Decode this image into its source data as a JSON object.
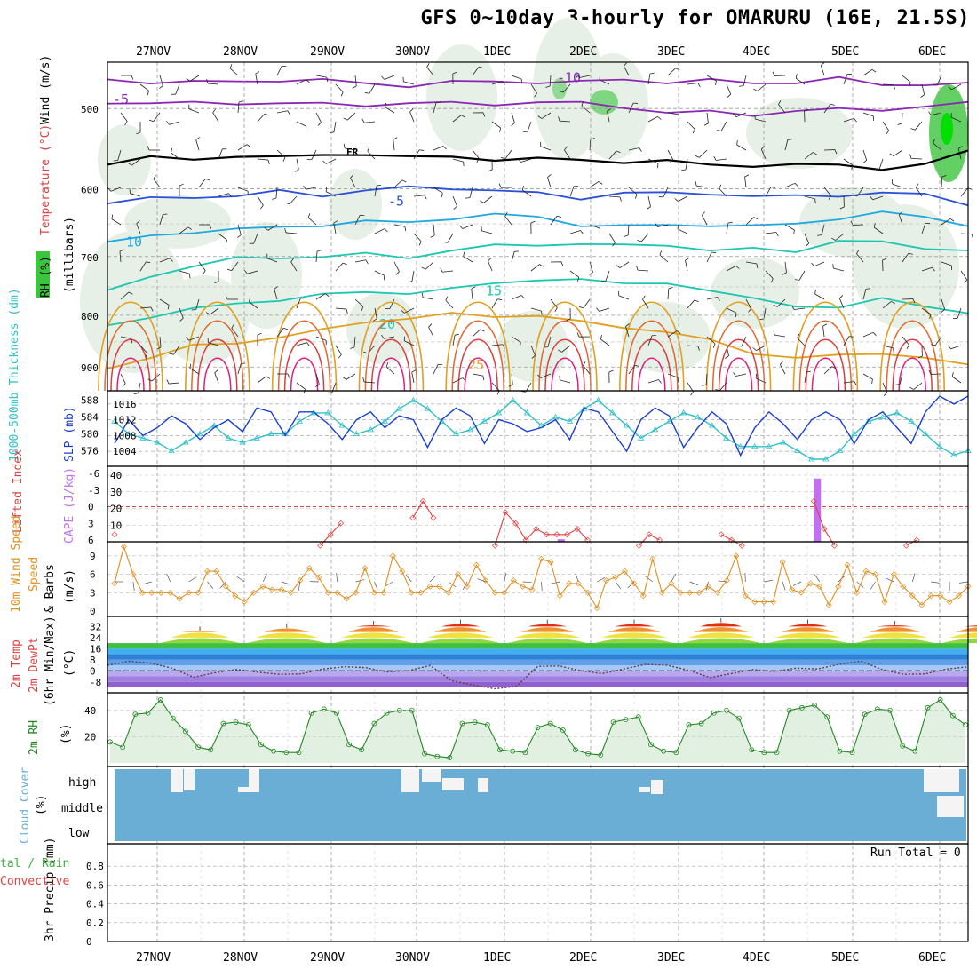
{
  "title": "GFS 0~10day 3-hourly for OMARURU (16E, 21.5S)",
  "dates": [
    "27NOV",
    "28NOV",
    "29NOV",
    "30NOV",
    "1DEC",
    "2DEC",
    "3DEC",
    "4DEC",
    "5DEC",
    "6DEC"
  ],
  "colors": {
    "rh_green": "#3cc43c",
    "temp_purple": "#8a28b4",
    "temp_blue": "#2a50d8",
    "temp_cyan": "#1fa8e0",
    "temp_teal": "#1bc7b0",
    "temp_orange": "#e0a020",
    "temp_red": "#e03050",
    "slp": "#1a3fd0",
    "thickness": "#30c0c8",
    "lifted": "#e04040",
    "cape": "#c070f0",
    "wind": "#e09020",
    "rh2m": "#228822",
    "cloud": "#6aaed6"
  },
  "chart_data": [
    {
      "type": "contour",
      "panel": "upper-air",
      "ylabel": "(millibars)",
      "side_labels": [
        "Wind (m/s)",
        "Temperature (°C)",
        "RH (%)"
      ],
      "y_ticks": [
        500,
        600,
        700,
        800,
        900
      ],
      "ylim": [
        950,
        450
      ],
      "y_scale": "log-pressure",
      "grid": true,
      "temperature_contours": [
        {
          "label": "-10",
          "levels_mb": [
            468,
            470,
            472,
            470,
            468,
            470,
            472,
            474,
            472,
            470,
            470,
            472,
            468,
            470,
            470,
            472,
            470,
            468,
            474,
            472,
            474
          ]
        },
        {
          "label": "-5",
          "levels_mb": [
            492,
            494,
            495,
            493,
            494,
            496,
            495,
            494,
            495,
            494,
            493,
            495,
            497,
            505,
            505,
            506,
            503,
            502,
            500,
            498,
            495
          ]
        },
        {
          "label": "FR",
          "levels_mb": [
            565,
            560,
            562,
            555,
            560,
            556,
            553,
            560,
            558,
            560,
            562,
            562,
            563,
            565,
            568,
            568,
            570,
            568,
            572,
            570,
            550
          ]
        },
        {
          "label": "-5",
          "levels_mb": [
            620,
            615,
            610,
            610,
            605,
            608,
            602,
            600,
            598,
            602,
            608,
            612,
            605,
            608,
            605,
            610,
            612,
            608,
            605,
            610,
            620
          ]
        },
        {
          "label": "10",
          "levels_mb": [
            680,
            668,
            660,
            660,
            655,
            650,
            648,
            648,
            640,
            638,
            640,
            650,
            655,
            652,
            650,
            655,
            650,
            640,
            635,
            640,
            650
          ]
        },
        {
          "label": "15",
          "levels_mb": [
            760,
            730,
            715,
            705,
            700,
            700,
            698,
            700,
            690,
            685,
            680,
            680,
            685,
            680,
            690,
            690,
            690,
            675,
            680,
            685,
            690
          ]
        },
        {
          "label": "20",
          "levels_mb": [
            820,
            800,
            790,
            780,
            770,
            765,
            760,
            758,
            755,
            745,
            735,
            740,
            745,
            740,
            760,
            770,
            780,
            790,
            770,
            780,
            800
          ]
        },
        {
          "label": "25",
          "levels_mb": [
            900,
            880,
            860,
            850,
            840,
            830,
            810,
            805,
            800,
            800,
            800,
            815,
            820,
            830,
            850,
            870,
            880,
            880,
            870,
            880,
            900
          ]
        }
      ]
    },
    {
      "type": "line",
      "panel": "pressure-thickness",
      "series": [
        {
          "name": "SLP (mb)",
          "y_ticks": [
            1004,
            1008,
            1012,
            1016
          ],
          "values": [
            1006,
            1012,
            1008,
            1010,
            1013,
            1011,
            1007,
            1010,
            1012,
            1009,
            1015,
            1014,
            1008,
            1014,
            1014,
            1011,
            1007,
            1012,
            1014,
            1010,
            1013,
            1012,
            1005,
            1012,
            1015,
            1013,
            1006,
            1012,
            1011,
            1009,
            1010,
            1012,
            1007,
            1015,
            1014,
            1009,
            1004,
            1012,
            1015,
            1013,
            1005,
            1010,
            1014,
            1011,
            1003,
            1010,
            1014,
            1011,
            1007,
            1012,
            1014,
            1012,
            1006,
            1012,
            1014,
            1010,
            1006,
            1014,
            1018,
            1016,
            1018
          ]
        },
        {
          "name": "1000-500mb Thickness (dm)",
          "y_ticks": [
            576,
            580,
            584,
            588
          ],
          "values": [
            583,
            580,
            579,
            578,
            576,
            578,
            580,
            582,
            579,
            578,
            579,
            580,
            580,
            583,
            585,
            585,
            582,
            580,
            581,
            583,
            586,
            588,
            586,
            583,
            580,
            581,
            583,
            585,
            588,
            585,
            582,
            584,
            583,
            586,
            588,
            585,
            582,
            579,
            581,
            583,
            585,
            584,
            582,
            579,
            577,
            577,
            577,
            578,
            576,
            574,
            574,
            576,
            580,
            583,
            584,
            585,
            583,
            580,
            577,
            575,
            576
          ]
        }
      ]
    },
    {
      "type": "bar+line",
      "panel": "stability",
      "series": [
        {
          "name": "Lifted Index",
          "y_ticks": [
            -6,
            -3,
            0,
            3,
            6
          ],
          "values": [
            5,
            9,
            9,
            9,
            9,
            9,
            9,
            9,
            9,
            9,
            9,
            9,
            9,
            9,
            9,
            9,
            9,
            9,
            9,
            9,
            7,
            5,
            3,
            9,
            9,
            9,
            9,
            9,
            9,
            2,
            -1,
            2,
            9,
            9,
            9,
            9,
            9,
            7,
            1,
            3,
            6,
            4,
            5,
            5,
            5,
            4,
            6,
            9,
            9,
            9,
            9,
            7,
            5,
            6,
            9,
            9,
            9,
            9,
            9,
            5,
            6,
            7,
            9,
            9,
            9,
            9,
            9,
            9,
            -1,
            4,
            7,
            9,
            9,
            9,
            9,
            9,
            9,
            7,
            6,
            9,
            9,
            9,
            9,
            9
          ]
        },
        {
          "name": "CAPE (J/kg)",
          "y_ticks": [
            10,
            20,
            30,
            40
          ],
          "bars": [
            {
              "x": "1DEC 15z",
              "value": 1.5
            },
            {
              "x": "4DEC 12z",
              "value": 38
            }
          ]
        }
      ]
    },
    {
      "type": "line",
      "panel": "wind10m",
      "ylabel": "10m Wind Speed & Barbs (m/s)",
      "y_ticks": [
        0,
        3,
        6,
        9
      ],
      "values": [
        4.5,
        10.5,
        6,
        3,
        3,
        3,
        3,
        2,
        3,
        3,
        6.5,
        6.5,
        4,
        2.5,
        1.5,
        3,
        4,
        3.5,
        3.5,
        3,
        5,
        7,
        5.5,
        3,
        3,
        2,
        3,
        7,
        3,
        3,
        9,
        6.5,
        3,
        3,
        4,
        4,
        3,
        6,
        4,
        7.5,
        5,
        3,
        3,
        5,
        4,
        3.5,
        8.5,
        8,
        2.5,
        4.5,
        4.5,
        3,
        0.5,
        5,
        5.5,
        6.5,
        4.5,
        2.5,
        8.5,
        3,
        4.5,
        3,
        3,
        3,
        4,
        3,
        5,
        9,
        2.5,
        1.5,
        1.5,
        1.5,
        8,
        3.5,
        3,
        4.5,
        4,
        1,
        4,
        7.5,
        3,
        6.5,
        6,
        1.5,
        6,
        4,
        2.5,
        1,
        2.5,
        2.5,
        1.5,
        2.5,
        4
      ]
    },
    {
      "type": "area",
      "panel": "temperature2m",
      "ylabel": "2m Temp 2m DewPt (6hr Min/Max) (°C)",
      "y_ticks": [
        -8,
        0,
        8,
        16,
        24,
        32
      ],
      "temp_max": [
        29,
        31,
        33,
        34,
        34,
        34,
        35,
        34,
        33,
        33
      ],
      "temp_min": [
        20,
        16,
        19,
        20,
        17,
        20,
        19,
        18,
        17,
        17
      ],
      "dewpoint": [
        4,
        -2,
        0,
        2,
        -10,
        1,
        2,
        -2,
        4,
        0
      ]
    },
    {
      "type": "area",
      "panel": "rh2m",
      "ylabel": "2m RH (%)",
      "y_ticks": [
        20,
        40
      ],
      "values": [
        16,
        12,
        37,
        38,
        48,
        34,
        24,
        12,
        10,
        30,
        31,
        29,
        14,
        9,
        8,
        8,
        38,
        41,
        38,
        14,
        10,
        30,
        38,
        40,
        40,
        7,
        5,
        4,
        30,
        31,
        29,
        10,
        9,
        8,
        27,
        30,
        25,
        10,
        7,
        6,
        31,
        33,
        35,
        14,
        9,
        8,
        29,
        30,
        38,
        40,
        34,
        10,
        8,
        8,
        40,
        42,
        44,
        35,
        9,
        8,
        37,
        41,
        40,
        13,
        9,
        42,
        48,
        36,
        29
      ]
    },
    {
      "type": "heatmap",
      "panel": "cloud-cover",
      "ylabel": "Cloud Cover (%)",
      "y_categories": [
        "high",
        "middle",
        "low"
      ]
    },
    {
      "type": "bar",
      "panel": "precipitation",
      "ylabel": "3hr Precip (mm)",
      "side_labels": [
        "Total / Rain",
        "Convective"
      ],
      "y_ticks": [
        0,
        0.2,
        0.4,
        0.6,
        0.8
      ],
      "ylim": [
        0,
        1
      ],
      "values": [],
      "annotation": "Run Total = 0"
    }
  ],
  "labels": {
    "millibars": "(millibars)",
    "wind_ms": "Wind (m/s)",
    "temp_c": "Temperature (°C)",
    "rh_pct": "RH (%)",
    "slp": "SLP (mb)",
    "thickness": "1000-500mb Thickness (dm)",
    "lifted": "Lifted Index",
    "cape": "CAPE (J/kg)",
    "wind10": "10m Wind Speed",
    "wind10b": "& Barbs",
    "ms": "(m/s)",
    "t2m": "2m Temp",
    "dp2m": "2m DewPt",
    "minmax": "(6hr Min/Max)",
    "degc": "(°C)",
    "rh2m": "2m RH",
    "pct": "(%)",
    "cloud": "Cloud Cover",
    "precip": "3hr Precip (mm)",
    "total_rain": "tal / Rain",
    "convective": "Convective",
    "run_total": "Run Total = 0",
    "fr": "FR"
  }
}
